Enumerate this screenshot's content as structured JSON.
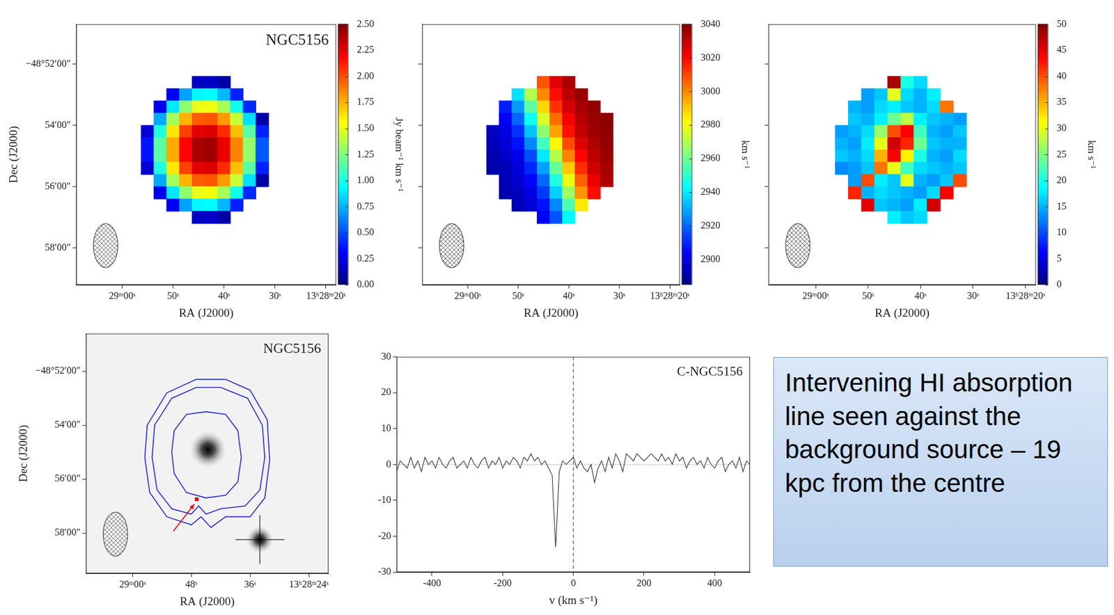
{
  "chart_data": [
    {
      "type": "heatmap",
      "title": "NGC5156",
      "xlabel": "RA (J2000)",
      "ylabel": "Dec (J2000)",
      "color": "jet",
      "xlim": [
        69,
        18
      ],
      "xticks": [
        {
          "value": 60,
          "label": "29ᵐ00ˢ"
        },
        {
          "value": 50,
          "label": "50ˢ"
        },
        {
          "value": 40,
          "label": "40ˢ"
        },
        {
          "value": 30,
          "label": "30ˢ"
        },
        {
          "value": 20,
          "label": "13ʰ28ᵐ20ˢ"
        }
      ],
      "ylim": [
        -59.2,
        -50.7
      ],
      "yticks": [
        {
          "value": -52,
          "label": "−48°52′00″"
        },
        {
          "value": -54,
          "label": "54′00″"
        },
        {
          "value": -56,
          "label": "56′00″"
        },
        {
          "value": -58,
          "label": "58′00″"
        }
      ],
      "x": [
        57.5,
        55,
        52.5,
        50,
        47.5,
        45,
        42.5,
        40,
        37.5,
        35,
        32.5,
        30
      ],
      "y": [
        -52.6,
        -53,
        -53.4,
        -53.8,
        -54.2,
        -54.6,
        -55,
        -55.4,
        -55.8,
        -56.2,
        -56.6,
        -57
      ],
      "values": [
        [
          null,
          null,
          null,
          null,
          null,
          0.16,
          0.18,
          0.1,
          null,
          null,
          null,
          null
        ],
        [
          null,
          null,
          null,
          0.29,
          0.71,
          0.92,
          0.94,
          0.76,
          0.39,
          null,
          null,
          null
        ],
        [
          null,
          null,
          0.27,
          0.88,
          1.29,
          1.51,
          1.53,
          1.35,
          0.98,
          0.41,
          null,
          null
        ],
        [
          null,
          null,
          0.73,
          1.34,
          1.75,
          1.96,
          1.98,
          1.81,
          1.43,
          0.86,
          0.1,
          null
        ],
        [
          null,
          0.21,
          1.01,
          1.62,
          2.03,
          2.25,
          2.27,
          2.09,
          1.72,
          1.15,
          0.39,
          null
        ],
        [
          null,
          0.36,
          1.16,
          1.77,
          2.18,
          2.4,
          2.42,
          2.24,
          1.87,
          1.3,
          0.53,
          null
        ],
        [
          null,
          0.36,
          1.16,
          1.77,
          2.18,
          2.4,
          2.42,
          2.24,
          1.87,
          1.3,
          0.53,
          null
        ],
        [
          null,
          0.21,
          1.01,
          1.62,
          2.03,
          2.25,
          2.27,
          2.09,
          1.72,
          1.15,
          0.39,
          null
        ],
        [
          null,
          null,
          0.73,
          1.34,
          1.75,
          1.96,
          1.98,
          1.81,
          1.43,
          0.86,
          0.1,
          null
        ],
        [
          null,
          null,
          0.27,
          0.88,
          1.29,
          1.51,
          1.53,
          1.35,
          0.98,
          0.41,
          null,
          null
        ],
        [
          null,
          null,
          null,
          0.29,
          0.71,
          0.92,
          0.94,
          0.76,
          0.39,
          null,
          null,
          null
        ],
        [
          null,
          null,
          null,
          null,
          null,
          0.16,
          0.18,
          0.1,
          null,
          null,
          null,
          null
        ]
      ],
      "colorbar": {
        "range": [
          0,
          2.5
        ],
        "label": "Jy beam⁻¹ km s⁻¹",
        "ticks": [
          {
            "value": 0,
            "label": "0.00"
          },
          0.25,
          {
            "value": 0.5,
            "label": "0.50"
          },
          0.75,
          {
            "value": 1,
            "label": "1.00"
          },
          1.25,
          {
            "value": 1.5,
            "label": "1.50"
          },
          1.75,
          {
            "value": 2,
            "label": "2.00"
          },
          2.25,
          {
            "value": 2.5,
            "label": "2.50"
          }
        ]
      }
    },
    {
      "type": "heatmap",
      "xlabel": "RA (J2000)",
      "color": "jet",
      "tick_labels": "x",
      "xlim": [
        69,
        18
      ],
      "xticks": [
        {
          "value": 60,
          "label": "29ᵐ00ˢ"
        },
        {
          "value": 50,
          "label": "50ˢ"
        },
        {
          "value": 40,
          "label": "40ˢ"
        },
        {
          "value": 30,
          "label": "30ˢ"
        },
        {
          "value": 20,
          "label": "13ʰ28ᵐ20ˢ"
        }
      ],
      "ylim": [
        -59.2,
        -50.7
      ],
      "yticks": [
        -52,
        -54,
        -56,
        -58
      ],
      "x": [
        57.5,
        55,
        52.5,
        50,
        47.5,
        45,
        42.5,
        40,
        37.5,
        35,
        32.5,
        30
      ],
      "y": [
        -52.6,
        -53,
        -53.4,
        -53.8,
        -54.2,
        -54.6,
        -55,
        -55.4,
        -55.8,
        -56.2,
        -56.6,
        -57
      ],
      "values": [
        [
          null,
          null,
          null,
          null,
          null,
          3008,
          3025,
          3033,
          null,
          null,
          null,
          null
        ],
        [
          null,
          null,
          null,
          2939,
          2970,
          3000,
          3019,
          3031,
          3036,
          null,
          null,
          null
        ],
        [
          null,
          null,
          2909,
          2928,
          2957,
          2988,
          3013,
          3027,
          3034,
          3037,
          null,
          null
        ],
        [
          null,
          null,
          2904,
          2920,
          2945,
          2976,
          3004,
          3022,
          3032,
          3036,
          3038,
          null
        ],
        [
          null,
          2895,
          2900,
          2912,
          2934,
          2965,
          2996,
          3018,
          3030,
          3035,
          3038,
          null
        ],
        [
          null,
          2894,
          2898,
          2907,
          2925,
          2953,
          2983,
          3009,
          3026,
          3033,
          3037,
          null
        ],
        [
          null,
          2892,
          2896,
          2902,
          2916,
          2940,
          2971,
          3001,
          3020,
          3031,
          3036,
          null
        ],
        [
          null,
          2892,
          2894,
          2899,
          2910,
          2929,
          2959,
          2990,
          3014,
          3028,
          3034,
          null
        ],
        [
          null,
          null,
          2893,
          2897,
          2905,
          2920,
          2948,
          2979,
          3006,
          3024,
          3033,
          null
        ],
        [
          null,
          null,
          2892,
          2895,
          2900,
          2913,
          2936,
          2967,
          2998,
          3019,
          null,
          null
        ],
        [
          null,
          null,
          null,
          2894,
          2898,
          2907,
          2925,
          2955,
          2985,
          null,
          null,
          null
        ],
        [
          null,
          null,
          null,
          null,
          null,
          2903,
          2917,
          2942,
          null,
          null,
          null,
          null
        ]
      ],
      "colorbar": {
        "range": [
          2885,
          3040
        ],
        "label": "km s⁻¹",
        "ticks": [
          2900,
          2920,
          2940,
          2960,
          2980,
          3000,
          3020,
          3040
        ]
      }
    },
    {
      "type": "heatmap",
      "xlabel": "RA (J2000)",
      "color": "jet",
      "tick_labels": "x",
      "xlim": [
        69,
        18
      ],
      "xticks": [
        {
          "value": 60,
          "label": "29ᵐ00ˢ"
        },
        {
          "value": 50,
          "label": "50ˢ"
        },
        {
          "value": 40,
          "label": "40ˢ"
        },
        {
          "value": 30,
          "label": "30ˢ"
        },
        {
          "value": 20,
          "label": "13ʰ28ᵐ20ˢ"
        }
      ],
      "ylim": [
        -59.2,
        -50.7
      ],
      "yticks": [
        -52,
        -54,
        -56,
        -58
      ],
      "x": [
        57.5,
        55,
        52.5,
        50,
        47.5,
        45,
        42.5,
        40,
        37.5,
        35,
        32.5,
        30
      ],
      "y": [
        -52.6,
        -53,
        -53.4,
        -53.8,
        -54.2,
        -54.6,
        -55,
        -55.4,
        -55.8,
        -56.2,
        -56.6,
        -57
      ],
      "values": [
        [
          null,
          null,
          null,
          null,
          null,
          48,
          20,
          17,
          null,
          null,
          null,
          null
        ],
        [
          null,
          null,
          null,
          14,
          16,
          30,
          17,
          15,
          18,
          null,
          null,
          null
        ],
        [
          null,
          null,
          15,
          14,
          17,
          18,
          16,
          15,
          17,
          38,
          null,
          null
        ],
        [
          null,
          null,
          16,
          15,
          18,
          24,
          28,
          18,
          16,
          15,
          14,
          null
        ],
        [
          null,
          14,
          15,
          17,
          26,
          40,
          44,
          22,
          15,
          14,
          16,
          null
        ],
        [
          null,
          15,
          14,
          18,
          30,
          46,
          42,
          24,
          16,
          15,
          15,
          null
        ],
        [
          null,
          16,
          15,
          17,
          35,
          44,
          32,
          20,
          15,
          14,
          17,
          null
        ],
        [
          null,
          13,
          14,
          16,
          38,
          30,
          22,
          17,
          16,
          15,
          16,
          null
        ],
        [
          null,
          null,
          14,
          40,
          18,
          16,
          30,
          15,
          14,
          16,
          40,
          null
        ],
        [
          null,
          null,
          42,
          15,
          17,
          16,
          15,
          14,
          17,
          44,
          null,
          null
        ],
        [
          null,
          null,
          null,
          45,
          16,
          15,
          14,
          18,
          46,
          null,
          null,
          null
        ],
        [
          null,
          null,
          null,
          null,
          null,
          18,
          16,
          17,
          null,
          null,
          null,
          null
        ]
      ],
      "colorbar": {
        "range": [
          0,
          50
        ],
        "label": "km s⁻¹",
        "ticks": [
          0,
          5,
          10,
          15,
          20,
          25,
          30,
          35,
          40,
          45,
          50
        ]
      }
    },
    {
      "type": "contour",
      "title": "NGC5156",
      "xlabel": "RA (J2000)",
      "ylabel": "Dec (J2000)",
      "color": "#2a2ad8",
      "xlim": [
        69.5,
        20
      ],
      "xticks": [
        {
          "value": 60,
          "label": "29ᵐ00ˢ"
        },
        {
          "value": 48,
          "label": "48ˢ"
        },
        {
          "value": 36,
          "label": "36ˢ"
        },
        {
          "value": 24,
          "label": "13ʰ28ᵐ24ˢ"
        }
      ],
      "ylim": [
        -59.5,
        -50.6
      ],
      "yticks": [
        {
          "value": -52,
          "label": "−48°52′00″"
        },
        {
          "value": -54,
          "label": "54′00″"
        },
        {
          "value": -56,
          "label": "56′00″"
        },
        {
          "value": -58,
          "label": "58′00″"
        }
      ],
      "contours": [
        {
          "x": [
            51.5,
            49,
            45,
            41,
            38.5,
            37.8,
            38.5,
            41,
            45,
            49,
            51.5,
            52
          ],
          "y": [
            -54.2,
            -53.6,
            -53.5,
            -53.6,
            -54.2,
            -55.2,
            -56.1,
            -56.6,
            -56.7,
            -56.5,
            -55.8,
            -55
          ]
        },
        {
          "x": [
            55.5,
            52,
            47,
            42,
            36.5,
            33.5,
            33,
            34,
            37,
            42,
            45,
            46.5,
            48,
            52,
            55,
            56
          ],
          "y": [
            -54,
            -53,
            -52.6,
            -52.6,
            -53,
            -54,
            -55.2,
            -56.4,
            -57,
            -57.1,
            -57.3,
            -57,
            -57.3,
            -57.1,
            -56.4,
            -55.2
          ]
        },
        {
          "x": [
            57,
            53,
            47,
            41,
            36,
            32.5,
            32,
            33,
            36,
            41,
            44,
            46,
            48,
            53,
            56.5,
            57.5
          ],
          "y": [
            -54,
            -52.8,
            -52.3,
            -52.3,
            -52.7,
            -53.8,
            -55.3,
            -56.7,
            -57.4,
            -57.4,
            -57.8,
            -57.4,
            -57.7,
            -57.4,
            -56.5,
            -55.2
          ]
        }
      ],
      "optical_sources": [
        {
          "x": 44.6,
          "y": -54.9
        },
        {
          "x": 34,
          "y": -58.25
        }
      ],
      "background_source": {
        "x": 46.9,
        "y": -56.75,
        "color": "#e8000b",
        "marker": "square"
      }
    },
    {
      "type": "line",
      "title": "C-NGC5156",
      "xlabel": "v (km s⁻¹)",
      "color": "#333333",
      "annotation": "Intervening HI absorption line seen against the background source – 19 kpc from the centre",
      "xlim": [
        -500,
        500
      ],
      "xticks": [
        -400,
        -200,
        0,
        200,
        400
      ],
      "ylim": [
        -30,
        30
      ],
      "yticks": [
        -30,
        -20,
        -10,
        0,
        10,
        20,
        30
      ],
      "reference_lines": {
        "x": 0,
        "y": 0
      },
      "x": [
        -500,
        -490,
        -480,
        -470,
        -460,
        -450,
        -440,
        -430,
        -420,
        -410,
        -400,
        -390,
        -380,
        -370,
        -360,
        -350,
        -340,
        -330,
        -320,
        -310,
        -300,
        -290,
        -280,
        -270,
        -260,
        -250,
        -240,
        -230,
        -220,
        -210,
        -200,
        -190,
        -180,
        -170,
        -160,
        -150,
        -140,
        -130,
        -120,
        -110,
        -100,
        -90,
        -80,
        -70,
        -60,
        -50,
        -40,
        -30,
        -20,
        -10,
        0,
        10,
        20,
        30,
        40,
        50,
        60,
        70,
        80,
        90,
        100,
        110,
        120,
        130,
        140,
        150,
        160,
        170,
        180,
        190,
        200,
        210,
        220,
        230,
        240,
        250,
        260,
        270,
        280,
        290,
        300,
        310,
        320,
        330,
        340,
        350,
        360,
        370,
        380,
        390,
        400,
        410,
        420,
        430,
        440,
        450,
        460,
        470,
        480,
        490,
        500
      ],
      "values": [
        -2,
        1,
        0,
        -1,
        2,
        -1,
        1,
        -2,
        2,
        0,
        1,
        -1,
        2,
        0,
        -1,
        1,
        2,
        -1,
        0,
        1,
        -1,
        2,
        0,
        -1,
        1,
        2,
        -1,
        1,
        0,
        2,
        -1,
        1,
        0,
        2,
        1,
        -1,
        2,
        1,
        3,
        1,
        2,
        0,
        1,
        -1,
        -3,
        -23,
        -2,
        1,
        0,
        1,
        2,
        -1,
        1,
        -1,
        -2,
        0,
        -5,
        -1,
        1,
        -2,
        2,
        -1,
        3,
        1,
        -2,
        3,
        2,
        1,
        3,
        2,
        1,
        2,
        3,
        2,
        1,
        3,
        1,
        2,
        0,
        3,
        1,
        2,
        -1,
        1,
        2,
        0,
        1,
        -1,
        2,
        0,
        -1,
        1,
        2,
        -2,
        0,
        1,
        -1,
        2,
        -2,
        1,
        0
      ]
    }
  ]
}
